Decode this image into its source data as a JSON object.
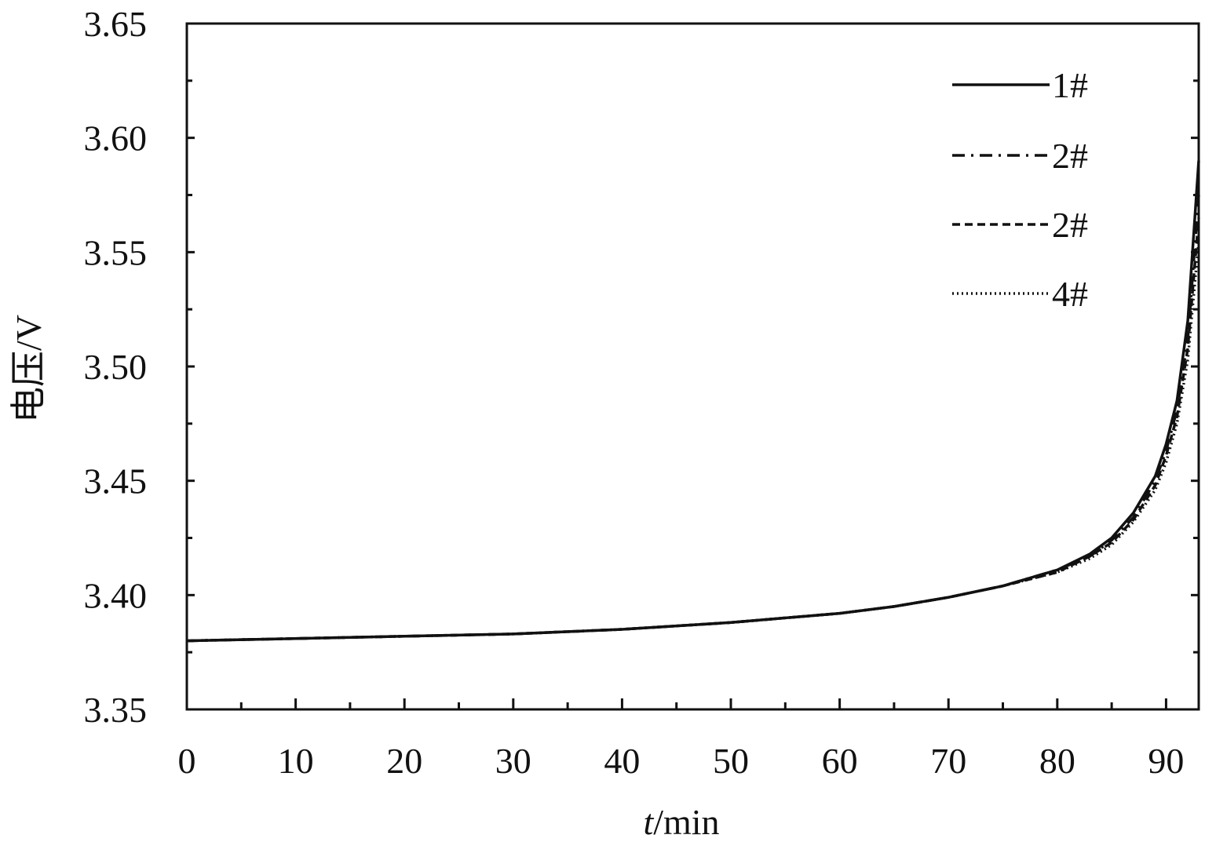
{
  "chart_data": {
    "type": "line",
    "xlabel_italic": "t",
    "xlabel_unit": "/min",
    "ylabel": "电压/V",
    "xlim": [
      0,
      93
    ],
    "ylim": [
      3.35,
      3.65
    ],
    "x_ticks": [
      0,
      10,
      20,
      30,
      40,
      50,
      60,
      70,
      80,
      90
    ],
    "y_ticks": [
      3.35,
      3.4,
      3.45,
      3.5,
      3.55,
      3.6,
      3.65
    ],
    "x_tick_labels": [
      "0",
      "10",
      "20",
      "30",
      "40",
      "50",
      "60",
      "70",
      "80",
      "90"
    ],
    "y_tick_labels": [
      "3.35",
      "3.40",
      "3.45",
      "3.50",
      "3.55",
      "3.60",
      "3.65"
    ],
    "grid": false,
    "legend_position": "top-right",
    "series": [
      {
        "name": "1#",
        "style": "solid",
        "x": [
          0,
          10,
          20,
          30,
          40,
          50,
          60,
          65,
          70,
          75,
          80,
          83,
          85,
          87,
          89,
          90,
          91,
          92,
          93
        ],
        "y": [
          3.38,
          3.381,
          3.382,
          3.383,
          3.385,
          3.388,
          3.392,
          3.395,
          3.399,
          3.404,
          3.411,
          3.418,
          3.425,
          3.436,
          3.452,
          3.466,
          3.485,
          3.52,
          3.59
        ]
      },
      {
        "name": "2#",
        "style": "dashdot",
        "x": [
          0,
          10,
          20,
          30,
          40,
          50,
          60,
          65,
          70,
          75,
          80,
          83,
          85,
          87,
          89,
          90,
          91,
          92,
          93
        ],
        "y": [
          3.38,
          3.381,
          3.382,
          3.383,
          3.385,
          3.388,
          3.392,
          3.395,
          3.399,
          3.404,
          3.411,
          3.417,
          3.424,
          3.434,
          3.45,
          3.463,
          3.481,
          3.512,
          3.575
        ]
      },
      {
        "name": "2#",
        "style": "dashed",
        "x": [
          0,
          10,
          20,
          30,
          40,
          50,
          60,
          65,
          70,
          75,
          80,
          83,
          85,
          87,
          89,
          90,
          91,
          92,
          93
        ],
        "y": [
          3.38,
          3.381,
          3.382,
          3.383,
          3.385,
          3.388,
          3.392,
          3.395,
          3.399,
          3.404,
          3.41,
          3.417,
          3.423,
          3.433,
          3.448,
          3.461,
          3.478,
          3.508,
          3.565
        ]
      },
      {
        "name": "4#",
        "style": "dotted",
        "x": [
          0,
          10,
          20,
          30,
          40,
          50,
          60,
          65,
          70,
          75,
          80,
          83,
          85,
          87,
          89,
          90,
          91,
          92,
          93
        ],
        "y": [
          3.38,
          3.381,
          3.382,
          3.383,
          3.385,
          3.388,
          3.392,
          3.395,
          3.399,
          3.404,
          3.41,
          3.416,
          3.422,
          3.432,
          3.446,
          3.458,
          3.475,
          3.503,
          3.555
        ]
      }
    ]
  }
}
